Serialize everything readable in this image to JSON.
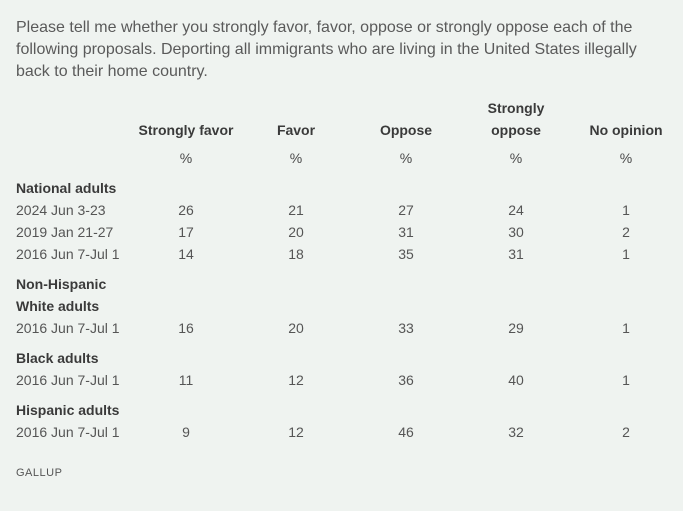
{
  "question": "Please tell me whether you strongly favor, favor, oppose or strongly oppose each of the following proposals. Deporting all immigrants who are living in the United States illegally back to their home country.",
  "columns": [
    {
      "label": "Strongly favor",
      "unit": "%"
    },
    {
      "label": "Favor",
      "unit": "%"
    },
    {
      "label": "Oppose",
      "unit": "%"
    },
    {
      "label": "Strongly oppose",
      "line1": "Strongly",
      "line2": "oppose",
      "unit": "%"
    },
    {
      "label": "No opinion",
      "unit": "%"
    }
  ],
  "groups": [
    {
      "label": "National adults",
      "rows": [
        {
          "date": "2024 Jun 3-23",
          "values": [
            "26",
            "21",
            "27",
            "24",
            "1"
          ]
        },
        {
          "date": "2019 Jan 21-27",
          "values": [
            "17",
            "20",
            "31",
            "30",
            "2"
          ]
        },
        {
          "date": "2016 Jun 7-Jul 1",
          "values": [
            "14",
            "18",
            "35",
            "31",
            "1"
          ]
        }
      ]
    },
    {
      "label": "Non-Hispanic White adults",
      "label_line1": "Non-Hispanic",
      "label_line2": "White adults",
      "rows": [
        {
          "date": "2016 Jun 7-Jul 1",
          "values": [
            "16",
            "20",
            "33",
            "29",
            "1"
          ]
        }
      ]
    },
    {
      "label": "Black adults",
      "rows": [
        {
          "date": "2016 Jun 7-Jul 1",
          "values": [
            "11",
            "12",
            "36",
            "40",
            "1"
          ]
        }
      ]
    },
    {
      "label": "Hispanic adults",
      "rows": [
        {
          "date": "2016 Jun 7-Jul 1",
          "values": [
            "9",
            "12",
            "46",
            "32",
            "2"
          ]
        }
      ]
    }
  ],
  "source": "GALLUP",
  "colors": {
    "background": "#eff3f0",
    "text": "#3d3d3d"
  }
}
